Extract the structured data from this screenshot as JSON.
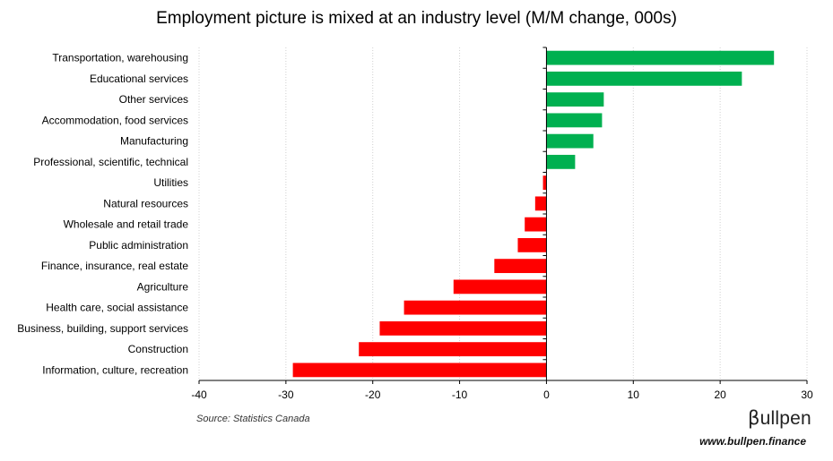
{
  "chart_data": {
    "type": "bar",
    "orientation": "horizontal",
    "title": "Employment picture is mixed at an industry level (M/M change, 000s)",
    "categories": [
      "Transportation, warehousing",
      "Educational services",
      "Other services",
      "Accommodation, food services",
      "Manufacturing",
      "Professional, scientific, technical",
      "Utilities",
      "Natural resources",
      "Wholesale and retail trade",
      "Public administration",
      "Finance, insurance, real estate",
      "Agriculture",
      "Health care, social assistance",
      "Business, building, support services",
      "Construction",
      "Information, culture, recreation"
    ],
    "values": [
      26.2,
      22.5,
      6.6,
      6.4,
      5.4,
      3.3,
      -0.4,
      -1.3,
      -2.5,
      -3.3,
      -6.0,
      -10.7,
      -16.4,
      -19.2,
      -21.6,
      -29.2
    ],
    "xlim": [
      -40,
      30
    ],
    "xticks": [
      -40,
      -30,
      -20,
      -10,
      0,
      10,
      20,
      30
    ],
    "grid": "vertical dotted",
    "colors": {
      "positive": "#00b050",
      "negative": "#ff0000"
    }
  },
  "footer": {
    "source": "Source: Statistics Canada",
    "logo_mark": "β",
    "logo_text": "ullpen",
    "website": "www.bullpen.finance"
  }
}
